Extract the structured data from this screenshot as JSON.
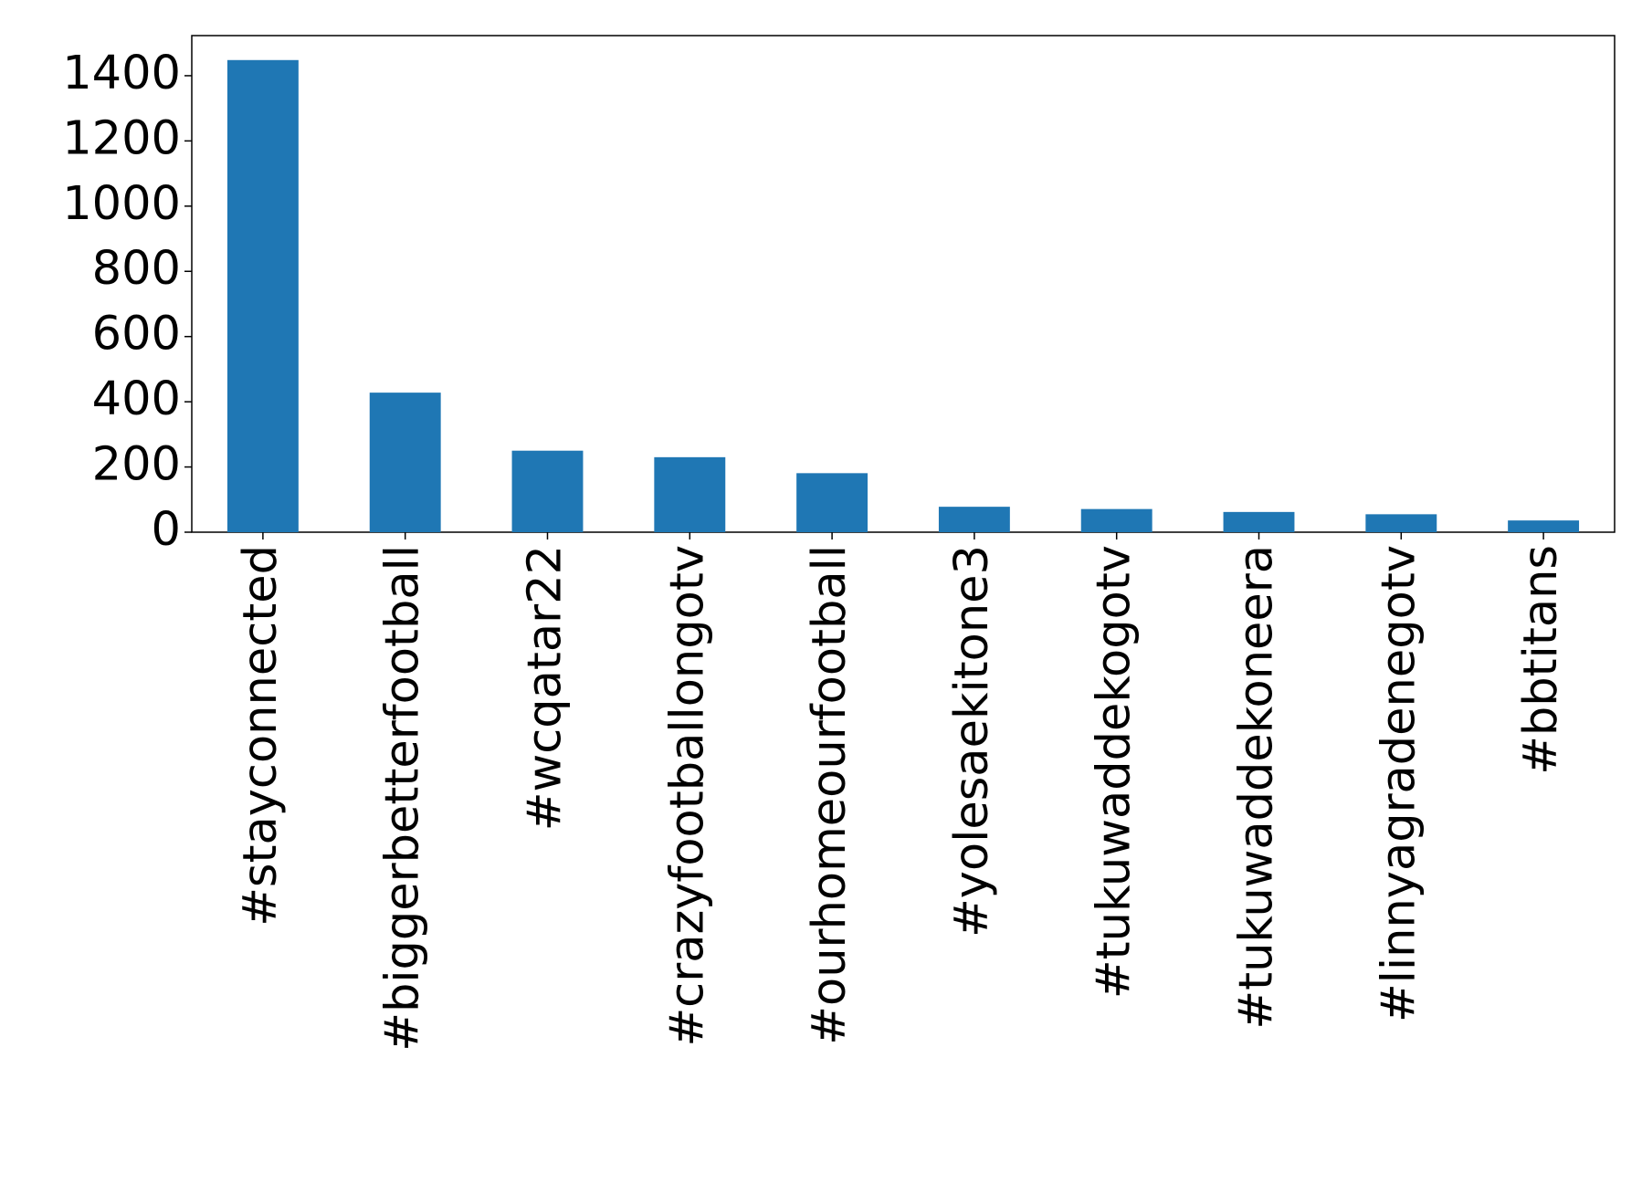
{
  "chart_data": {
    "type": "bar",
    "categories": [
      "#stayconnected",
      "#biggerbetterfootball",
      "#wcqatar22",
      "#crazyfootballongotv",
      "#ourhomeourfootball",
      "#yolesaekitone3",
      "#tukuwaddekogotv",
      "#tukuwaddekoneera",
      "#linnyagradenegotv",
      "#bbtitans"
    ],
    "values": [
      1448,
      428,
      250,
      230,
      181,
      78,
      71,
      62,
      55,
      36
    ],
    "color": "#1f77b4",
    "ylim": [
      0,
      1523
    ],
    "yticks": [
      0,
      200,
      400,
      600,
      800,
      1000,
      1200,
      1400
    ],
    "grid": false
  }
}
